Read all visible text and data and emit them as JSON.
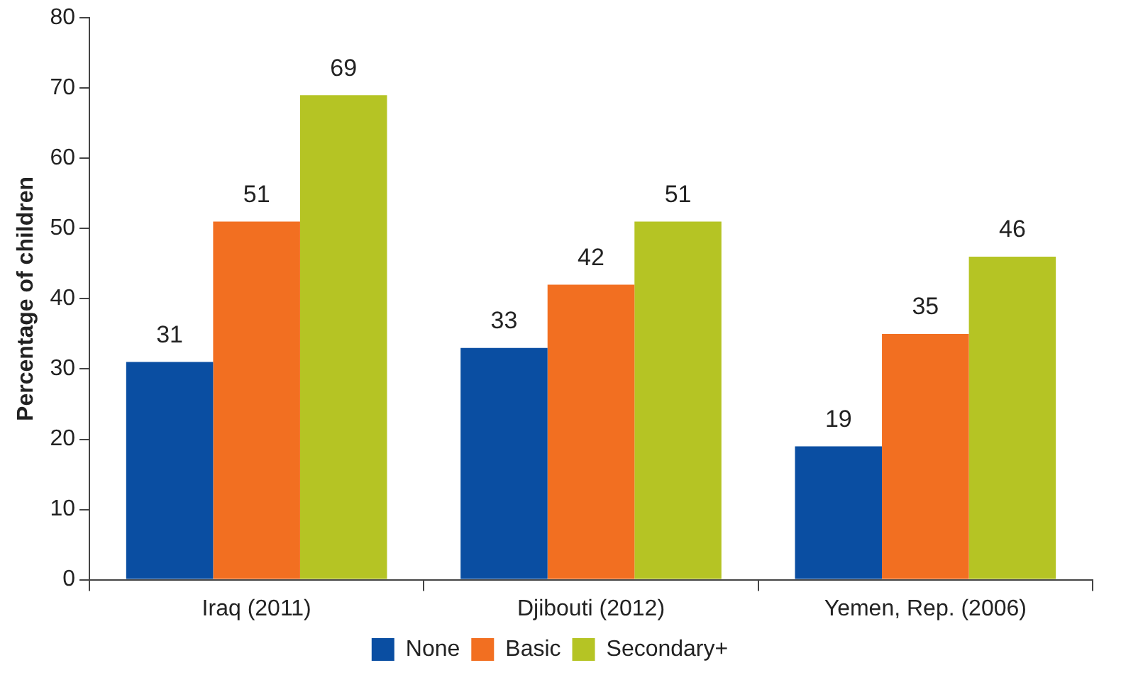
{
  "chart_data": {
    "type": "bar",
    "ylabel": "Percentage of children",
    "categories": [
      "Iraq (2011)",
      "Djibouti (2012)",
      "Yemen, Rep. (2006)"
    ],
    "series": [
      {
        "name": "None",
        "color": "#0a4ea2",
        "values": [
          31,
          33,
          19
        ]
      },
      {
        "name": "Basic",
        "color": "#f26f21",
        "values": [
          51,
          42,
          35
        ]
      },
      {
        "name": "Secondary+",
        "color": "#b5c424",
        "values": [
          69,
          51,
          46
        ]
      }
    ],
    "ylim": [
      0,
      80
    ],
    "yticks": [
      0,
      10,
      20,
      30,
      40,
      50,
      60,
      70,
      80
    ],
    "grid": false,
    "legend": "bottom",
    "data_labels": true
  }
}
